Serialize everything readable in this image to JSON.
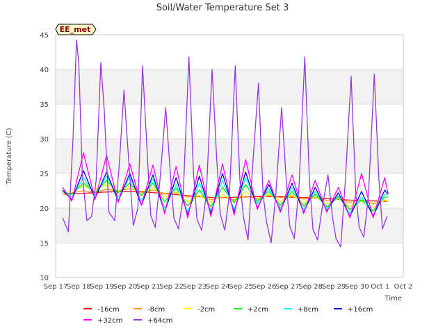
{
  "chart_data": {
    "type": "line",
    "title": "Soil/Water Temperature Set 3",
    "xlabel": "Time",
    "ylabel": "Temperature (C)",
    "ylim": [
      10,
      45
    ],
    "yticks": [
      10,
      15,
      20,
      25,
      30,
      35,
      40,
      45
    ],
    "xlim": [
      0,
      15
    ],
    "xticks": [
      {
        "x": 0,
        "label": "Sep 17"
      },
      {
        "x": 1,
        "label": "Sep 18"
      },
      {
        "x": 2,
        "label": "Sep 19"
      },
      {
        "x": 3,
        "label": "Sep 20"
      },
      {
        "x": 4,
        "label": "Sep 21"
      },
      {
        "x": 5,
        "label": "Sep 22"
      },
      {
        "x": 6,
        "label": "Sep 23"
      },
      {
        "x": 7,
        "label": "Sep 24"
      },
      {
        "x": 8,
        "label": "Sep 25"
      },
      {
        "x": 9,
        "label": "Sep 26"
      },
      {
        "x": 10,
        "label": "Sep 27"
      },
      {
        "x": 11,
        "label": "Sep 28"
      },
      {
        "x": 12,
        "label": "Sep 29"
      },
      {
        "x": 13,
        "label": "Sep 30"
      },
      {
        "x": 14,
        "label": "Oct 1"
      },
      {
        "x": 15,
        "label": "Oct 2"
      }
    ],
    "grid": "horizontal bands",
    "legend_position": "bottom",
    "badge": "EE_met",
    "series": [
      {
        "name": "-16cm",
        "color": "#ff0000",
        "x": [
          0.3,
          1,
          2,
          3,
          4,
          5,
          6,
          7,
          8,
          9,
          10,
          11,
          12,
          13,
          14,
          14.35
        ],
        "y": [
          22.0,
          22.1,
          22.3,
          22.4,
          22.3,
          22.0,
          21.7,
          21.5,
          21.6,
          21.7,
          21.6,
          21.5,
          21.3,
          21.1,
          21.0,
          21.0
        ]
      },
      {
        "name": "-8cm",
        "color": "#ff9900",
        "x": [
          0.3,
          0.7,
          1.2,
          1.7,
          2.2,
          2.7,
          3.2,
          3.7,
          4.2,
          4.7,
          5.2,
          5.7,
          6.2,
          6.7,
          7.2,
          7.7,
          8.2,
          8.7,
          9.2,
          9.7,
          10.2,
          10.7,
          11.2,
          11.7,
          12.2,
          12.7,
          13.2,
          13.7,
          14.2,
          14.35
        ],
        "y": [
          22.0,
          22.2,
          22.5,
          22.3,
          22.7,
          22.5,
          22.8,
          22.4,
          22.6,
          22.1,
          22.2,
          21.6,
          21.8,
          21.2,
          21.6,
          21.2,
          21.7,
          21.4,
          21.8,
          21.5,
          21.7,
          21.3,
          21.6,
          21.1,
          21.4,
          20.8,
          21.2,
          20.6,
          21.1,
          21.0
        ]
      },
      {
        "name": "-2cm",
        "color": "#ffff00",
        "x": [
          0.3,
          0.7,
          1.2,
          1.7,
          2.2,
          2.7,
          3.2,
          3.7,
          4.2,
          4.7,
          5.2,
          5.7,
          6.2,
          6.7,
          7.2,
          7.7,
          8.2,
          8.7,
          9.2,
          9.7,
          10.2,
          10.7,
          11.2,
          11.7,
          12.2,
          12.7,
          13.2,
          13.7,
          14.2,
          14.35
        ],
        "y": [
          22.0,
          22.6,
          23.2,
          22.6,
          23.4,
          22.4,
          23.2,
          22.0,
          23.0,
          21.6,
          22.4,
          20.9,
          21.8,
          20.8,
          22.0,
          21.0,
          22.4,
          21.2,
          22.0,
          21.0,
          21.9,
          20.8,
          21.6,
          20.6,
          21.4,
          20.2,
          21.0,
          20.0,
          21.2,
          21.0
        ]
      },
      {
        "name": "+2cm",
        "color": "#00ee00",
        "x": [
          0.3,
          0.7,
          1.2,
          1.7,
          2.2,
          2.7,
          3.2,
          3.7,
          4.2,
          4.7,
          5.2,
          5.7,
          6.2,
          6.7,
          7.2,
          7.7,
          8.2,
          8.7,
          9.2,
          9.7,
          10.2,
          10.7,
          11.2,
          11.7,
          12.2,
          12.7,
          13.2,
          13.7,
          14.2,
          14.35
        ],
        "y": [
          22.3,
          22.0,
          23.6,
          22.2,
          24.0,
          22.2,
          23.6,
          21.8,
          23.6,
          20.9,
          22.9,
          20.3,
          22.6,
          20.2,
          23.0,
          20.8,
          23.4,
          21.0,
          22.4,
          20.4,
          22.4,
          20.3,
          22.0,
          20.2,
          21.6,
          19.8,
          21.2,
          19.6,
          21.6,
          21.6
        ]
      },
      {
        "name": "+8cm",
        "color": "#00ffff",
        "x": [
          0.3,
          0.7,
          1.2,
          1.7,
          2.2,
          2.7,
          3.2,
          3.7,
          4.2,
          4.7,
          5.2,
          5.7,
          6.2,
          6.7,
          7.2,
          7.7,
          8.2,
          8.7,
          9.2,
          9.7,
          10.2,
          10.7,
          11.2,
          11.7,
          12.2,
          12.7,
          13.2,
          13.7,
          14.2,
          14.35
        ],
        "y": [
          22.4,
          21.6,
          24.4,
          21.8,
          24.6,
          21.6,
          24.4,
          21.0,
          24.2,
          20.0,
          23.4,
          19.4,
          23.6,
          19.6,
          24.0,
          19.8,
          24.4,
          20.6,
          22.8,
          20.0,
          23.0,
          19.8,
          22.4,
          20.0,
          21.8,
          19.2,
          21.6,
          19.0,
          22.0,
          22.0
        ]
      },
      {
        "name": "+16cm",
        "color": "#0000cc",
        "x": [
          0.3,
          0.7,
          1.2,
          1.7,
          2.2,
          2.7,
          3.2,
          3.7,
          4.2,
          4.7,
          5.2,
          5.7,
          6.2,
          6.7,
          7.2,
          7.7,
          8.2,
          8.7,
          9.2,
          9.7,
          10.2,
          10.7,
          11.2,
          11.7,
          12.2,
          12.7,
          13.2,
          13.7,
          14.2,
          14.35
        ],
        "y": [
          22.6,
          21.2,
          25.4,
          21.4,
          25.2,
          21.0,
          25.0,
          20.4,
          24.8,
          19.4,
          24.4,
          19.0,
          24.6,
          19.2,
          25.0,
          19.4,
          25.2,
          20.0,
          23.4,
          19.6,
          23.6,
          19.4,
          23.0,
          19.6,
          22.2,
          18.8,
          22.4,
          18.8,
          22.6,
          22.0
        ]
      },
      {
        "name": "+32cm",
        "color": "#ff00ff",
        "x": [
          0.3,
          0.7,
          1.2,
          1.7,
          2.2,
          2.7,
          3.2,
          3.7,
          4.2,
          4.7,
          5.2,
          5.7,
          6.2,
          6.7,
          7.2,
          7.7,
          8.2,
          8.7,
          9.2,
          9.7,
          10.2,
          10.7,
          11.2,
          11.7,
          12.2,
          12.7,
          13.2,
          13.7,
          14.2,
          14.35
        ],
        "y": [
          23.0,
          21.0,
          28.0,
          21.2,
          27.6,
          20.8,
          26.4,
          20.4,
          26.2,
          19.2,
          26.0,
          18.6,
          26.2,
          18.8,
          26.4,
          19.0,
          27.0,
          19.8,
          24.0,
          19.4,
          24.8,
          19.2,
          24.0,
          19.4,
          23.0,
          18.6,
          25.0,
          18.6,
          24.4,
          22.0
        ]
      },
      {
        "name": "+64cm",
        "color": "#9933dd",
        "x": [
          0.3,
          0.55,
          0.75,
          0.9,
          1.0,
          1.15,
          1.35,
          1.55,
          1.75,
          1.95,
          2.1,
          2.3,
          2.55,
          2.75,
          2.95,
          3.15,
          3.35,
          3.55,
          3.75,
          3.95,
          4.1,
          4.3,
          4.5,
          4.75,
          4.95,
          5.1,
          5.3,
          5.5,
          5.75,
          5.95,
          6.1,
          6.3,
          6.5,
          6.75,
          6.95,
          7.1,
          7.3,
          7.5,
          7.75,
          7.95,
          8.1,
          8.3,
          8.5,
          8.75,
          8.95,
          9.1,
          9.3,
          9.5,
          9.75,
          9.95,
          10.1,
          10.3,
          10.5,
          10.75,
          10.95,
          11.1,
          11.3,
          11.5,
          11.75,
          11.95,
          12.1,
          12.3,
          12.5,
          12.75,
          12.95,
          13.1,
          13.3,
          13.5,
          13.75,
          13.95,
          14.1,
          14.3
        ],
        "y": [
          18.6,
          16.6,
          30.0,
          44.2,
          41.0,
          25.0,
          18.2,
          18.8,
          24.0,
          41.0,
          34.0,
          19.4,
          18.2,
          26.5,
          37.0,
          27.0,
          17.5,
          20.0,
          40.5,
          28.0,
          19.0,
          17.2,
          24.0,
          34.5,
          25.0,
          18.6,
          17.0,
          21.5,
          41.8,
          25.0,
          18.4,
          16.8,
          22.0,
          40.0,
          27.0,
          19.2,
          16.8,
          22.0,
          40.5,
          24.0,
          18.8,
          15.4,
          26.0,
          38.0,
          22.0,
          18.0,
          15.0,
          22.0,
          34.5,
          24.0,
          17.4,
          15.6,
          23.0,
          41.8,
          24.0,
          17.0,
          15.4,
          20.0,
          24.8,
          18.6,
          15.6,
          14.4,
          24.0,
          39.0,
          22.0,
          17.2,
          15.8,
          22.0,
          39.3,
          24.0,
          17.0,
          18.8
        ]
      }
    ]
  }
}
